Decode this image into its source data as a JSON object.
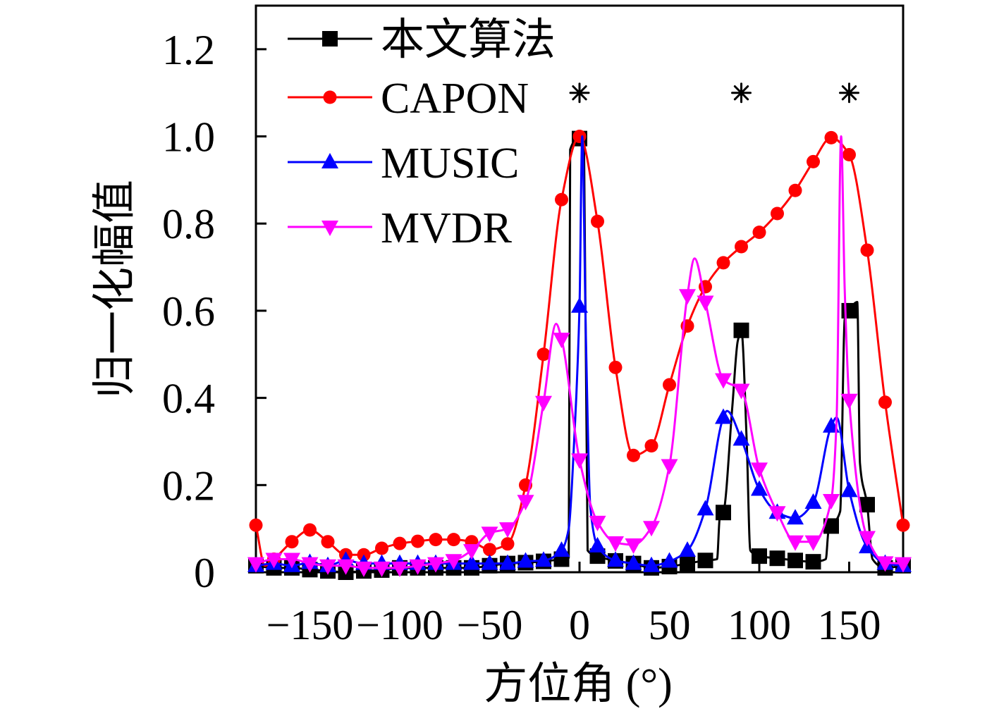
{
  "chart_data": {
    "type": "line",
    "xlabel": "方位角 (°)",
    "ylabel": "归一化幅值",
    "xlim": [
      -180,
      180
    ],
    "ylim": [
      0,
      1.3
    ],
    "xticks": [
      -150,
      -100,
      -50,
      0,
      50,
      100,
      150
    ],
    "xtick_labels": [
      "−150",
      "−100",
      "−50",
      "0",
      "50",
      "100",
      "150"
    ],
    "yticks": [
      0,
      0.2,
      0.4,
      0.6,
      0.8,
      1.0,
      1.2
    ],
    "ytick_labels": [
      "0",
      "0.2",
      "0.4",
      "0.6",
      "0.8",
      "1.0",
      "1.2"
    ],
    "grid": false,
    "legend": "top-left",
    "x": [
      -180,
      -170,
      -160,
      -150,
      -140,
      -130,
      -120,
      -110,
      -100,
      -90,
      -80,
      -70,
      -60,
      -50,
      -40,
      -30,
      -20,
      -10,
      0,
      10,
      20,
      30,
      40,
      50,
      60,
      70,
      80,
      90,
      100,
      110,
      120,
      130,
      140,
      150,
      160,
      170,
      180
    ],
    "series": [
      {
        "name": "本文算法",
        "color": "#000000",
        "marker": "square",
        "values": [
          0.015,
          0.01,
          0.01,
          0.006,
          0.003,
          0.0,
          0.003,
          0.005,
          0.01,
          0.01,
          0.01,
          0.01,
          0.01,
          0.015,
          0.02,
          0.022,
          0.025,
          0.03,
          0.995,
          0.037,
          0.026,
          0.02,
          0.01,
          0.013,
          0.02,
          0.027,
          0.137,
          0.555,
          0.037,
          0.032,
          0.027,
          0.024,
          0.106,
          0.6,
          0.155,
          0.01,
          0.015
        ],
        "line_points": [
          [
            -6,
            0.033
          ],
          [
            -5.2,
            0.97
          ],
          [
            2.5,
            0.98
          ],
          [
            4.5,
            0.05
          ],
          [
            76.5,
            0.03
          ],
          [
            78,
            0.125
          ],
          [
            85,
            0.38
          ],
          [
            88,
            0.53
          ],
          [
            93,
            0.3
          ],
          [
            95,
            0.05
          ],
          [
            137,
            0.03
          ],
          [
            138.5,
            0.095
          ],
          [
            145,
            0.14
          ],
          [
            147.5,
            0.58
          ],
          [
            154.5,
            0.62
          ],
          [
            156,
            0.25
          ],
          [
            163,
            0.03
          ]
        ]
      },
      {
        "name": "CAPON",
        "color": "#ff0000",
        "marker": "circle",
        "values": [
          0.108,
          0.03,
          0.07,
          0.097,
          0.07,
          0.04,
          0.04,
          0.055,
          0.066,
          0.071,
          0.075,
          0.075,
          0.07,
          0.052,
          0.065,
          0.2,
          0.5,
          0.855,
          1.0,
          0.805,
          0.47,
          0.268,
          0.29,
          0.43,
          0.565,
          0.655,
          0.71,
          0.747,
          0.78,
          0.823,
          0.876,
          0.942,
          0.997,
          0.958,
          0.739,
          0.39,
          0.108
        ],
        "line_points": [
          [
            -175,
            0.015
          ]
        ]
      },
      {
        "name": "MUSIC",
        "color": "#0000ff",
        "marker": "triangle-up",
        "values": [
          0.015,
          0.02,
          0.015,
          0.022,
          0.015,
          0.027,
          0.02,
          0.02,
          0.02,
          0.02,
          0.02,
          0.02,
          0.02,
          0.02,
          0.02,
          0.025,
          0.027,
          0.05,
          0.61,
          0.06,
          0.027,
          0.02,
          0.015,
          0.025,
          0.05,
          0.145,
          0.355,
          0.305,
          0.19,
          0.137,
          0.124,
          0.16,
          0.335,
          0.187,
          0.058,
          0.02,
          0.015
        ],
        "line_points": [
          [
            -6,
            0.1
          ],
          [
            -3,
            0.3
          ],
          [
            1.5,
            1.0
          ],
          [
            3.5,
            0.55
          ],
          [
            6,
            0.15
          ],
          [
            82,
            0.37
          ],
          [
            143,
            0.355
          ]
        ]
      },
      {
        "name": "MVDR",
        "color": "#ff00ff",
        "marker": "triangle-down",
        "values": [
          0.02,
          0.03,
          0.03,
          0.02,
          0.015,
          0.015,
          0.01,
          0.01,
          0.01,
          0.015,
          0.02,
          0.027,
          0.05,
          0.09,
          0.1,
          0.163,
          0.39,
          0.535,
          0.258,
          0.115,
          0.068,
          0.063,
          0.103,
          0.245,
          0.635,
          0.62,
          0.442,
          0.418,
          0.237,
          0.137,
          0.07,
          0.07,
          0.165,
          0.395,
          0.08,
          0.022,
          0.02
        ],
        "line_points": [
          [
            -13,
            0.57
          ],
          [
            64,
            0.72
          ],
          [
            143,
            0.35
          ],
          [
            145.5,
            1.0
          ],
          [
            147.5,
            0.65
          ]
        ]
      }
    ],
    "annotations": {
      "marker": "asterisk",
      "color": "#000000",
      "x": [
        0,
        90,
        150
      ],
      "y": 1.1
    }
  }
}
